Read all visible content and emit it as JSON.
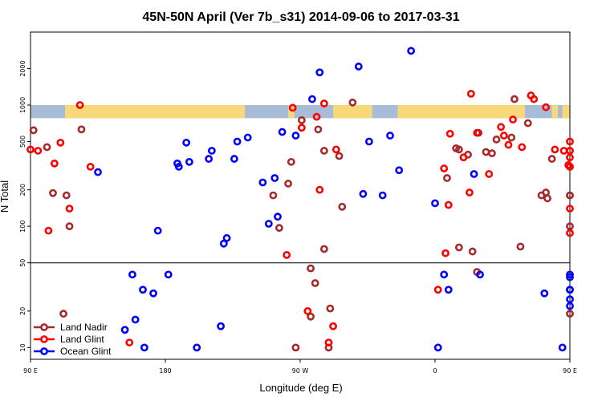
{
  "chart_data": {
    "type": "scatter",
    "title": "45N-50N April (Ver 7b_s31)   2014-09-06 to 2017-03-31",
    "xlabel": "Longitude (deg E)",
    "ylabel": "N Total",
    "xlim": [
      90,
      450
    ],
    "ylim_log": [
      8,
      4000
    ],
    "x_ticks": [
      {
        "value": 90,
        "label": "90 E"
      },
      {
        "value": 180,
        "label": "180"
      },
      {
        "value": 270,
        "label": "90 W"
      },
      {
        "value": 360,
        "label": "0"
      },
      {
        "value": 450,
        "label": "90 E"
      },
      {
        "value": 540,
        "label": "180"
      }
    ],
    "y_ticks": [
      {
        "value": 10,
        "label": "10"
      },
      {
        "value": 20,
        "label": "20"
      },
      {
        "value": 50,
        "label": "50"
      },
      {
        "value": 100,
        "label": "100"
      },
      {
        "value": 200,
        "label": "200"
      },
      {
        "value": 500,
        "label": "500"
      },
      {
        "value": 1000,
        "label": "1000"
      },
      {
        "value": 2000,
        "label": "2000"
      }
    ],
    "reference_line": 50,
    "land_band": {
      "y_low": 780,
      "y_high": 1000,
      "land_color": "#f8d878",
      "ocean_color": "#a8bcd8"
    },
    "legend_position": "bottom-left",
    "series": [
      {
        "name": "Land Nadir",
        "color": "#a52a2a",
        "x": [
          92,
          101,
          105,
          112,
          114,
          116,
          124,
          252,
          256,
          262,
          264,
          267,
          271,
          277,
          277,
          280,
          282,
          286,
          286,
          289,
          290,
          296,
          298,
          305,
          376,
          368,
          374,
          376,
          385,
          382,
          388,
          389,
          394,
          401,
          398,
          417,
          411,
          438,
          413,
          422,
          431,
          435,
          434,
          450,
          450,
          455,
          463,
          472,
          473
        ],
        "y": [
          620,
          450,
          188,
          19,
          180,
          100,
          630,
          180,
          97,
          225,
          340,
          10,
          750,
          18,
          45,
          34,
          630,
          420,
          65,
          10,
          21,
          380,
          145,
          1050,
          430,
          250,
          440,
          67,
          62,
          390,
          42,
          590,
          410,
          520,
          400,
          68,
          540,
          360,
          1120,
          710,
          180,
          170,
          190,
          420,
          19,
          180,
          310,
          100,
          180
        ]
      },
      {
        "name": "Land Glint",
        "color": "#ff0000",
        "x": [
          89,
          95,
          102,
          106,
          110,
          116,
          123,
          130,
          156,
          261,
          265,
          271,
          281,
          275,
          283,
          286,
          294,
          289,
          292,
          366,
          362,
          367,
          383,
          379,
          369,
          370,
          384,
          388,
          396,
          404,
          406,
          409,
          412,
          418,
          424,
          426,
          434,
          440,
          446,
          449,
          456,
          460,
          462,
          465,
          467,
          482
        ],
        "y": [
          430,
          420,
          92,
          330,
          490,
          140,
          1000,
          310,
          11,
          58,
          950,
          650,
          800,
          20,
          200,
          1030,
          430,
          11,
          15,
          300,
          30,
          60,
          190,
          370,
          150,
          580,
          1240,
          590,
          270,
          660,
          560,
          470,
          760,
          450,
          1200,
          1120,
          960,
          430,
          420,
          320,
          370,
          420,
          500,
          88,
          140,
          310
        ]
      },
      {
        "name": "Ocean Glint",
        "color": "#0000ff",
        "x": [
          135,
          153,
          158,
          160,
          165,
          166,
          172,
          175,
          182,
          188,
          189,
          194,
          196,
          201,
          209,
          211,
          217,
          219,
          221,
          226,
          228,
          235,
          245,
          249,
          253,
          255,
          258,
          267,
          278,
          283,
          309,
          312,
          316,
          325,
          330,
          336,
          344,
          360,
          362,
          366,
          369,
          386,
          390,
          433,
          445,
          455,
          467,
          470,
          476,
          480,
          488
        ],
        "y": [
          280,
          14,
          40,
          17,
          30,
          10,
          28,
          92,
          40,
          330,
          310,
          490,
          340,
          10,
          360,
          420,
          15,
          72,
          80,
          360,
          500,
          540,
          230,
          105,
          250,
          120,
          600,
          560,
          1120,
          1860,
          2080,
          185,
          500,
          180,
          560,
          290,
          2800,
          155,
          10,
          40,
          30,
          270,
          40,
          28,
          10,
          30,
          25,
          38,
          22,
          40,
          30
        ]
      }
    ]
  }
}
